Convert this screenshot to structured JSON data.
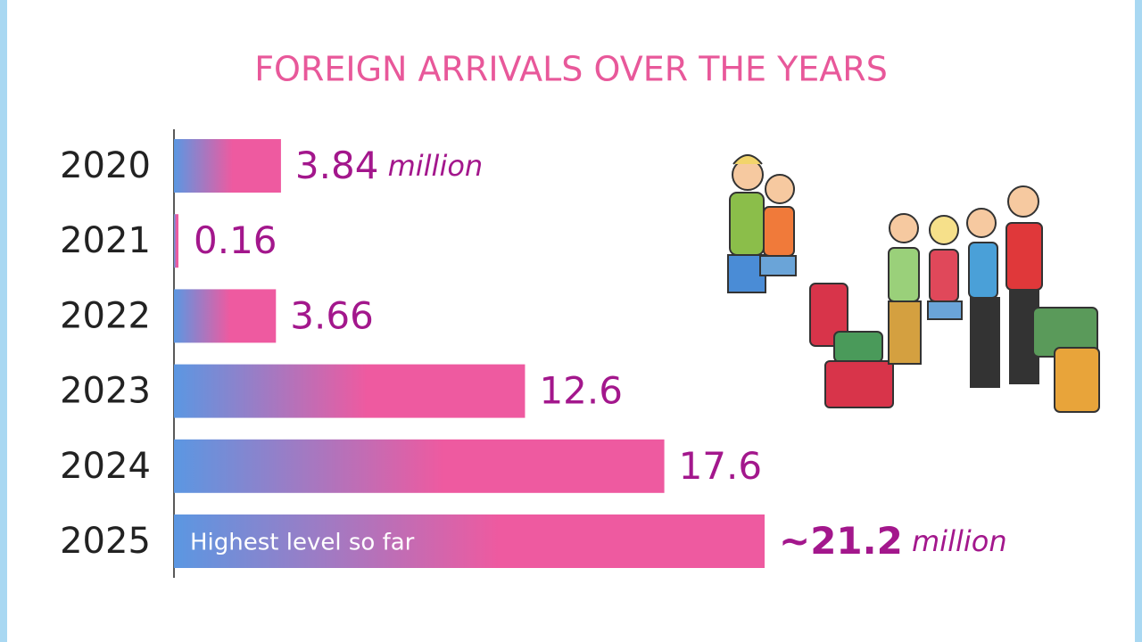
{
  "chart_data": {
    "type": "bar",
    "orientation": "horizontal",
    "title": "FOREIGN ARRIVALS OVER THE YEARS",
    "categories": [
      "2020",
      "2021",
      "2022",
      "2023",
      "2024",
      "2025"
    ],
    "values": [
      3.84,
      0.16,
      3.66,
      12.6,
      17.6,
      21.2
    ],
    "value_labels": [
      "3.84 million",
      "0.16",
      "3.66",
      "12.6",
      "17.6",
      "~21.2 million"
    ],
    "annotation": "Highest level so far",
    "colors": [
      "#5b97e2",
      "#ee5aa0"
    ]
  }
}
